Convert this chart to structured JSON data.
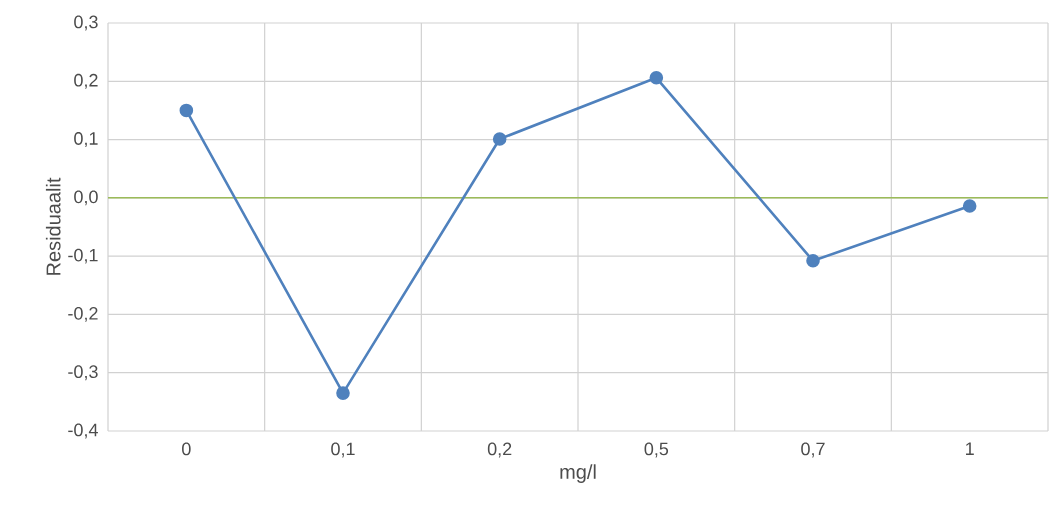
{
  "chart_data": {
    "type": "line",
    "xlabel": "mg/l",
    "ylabel": "Residuaalit",
    "categories": [
      "0",
      "0,1",
      "0,2",
      "0,5",
      "0,7",
      "1"
    ],
    "values": [
      0.15,
      -0.335,
      0.101,
      0.206,
      -0.108,
      -0.014
    ],
    "color": "#4f81bd",
    "marker": "circle",
    "line_style": "solid",
    "grid": true,
    "ylim": [
      -0.4,
      0.3
    ],
    "yticks": [
      {
        "value": -0.4,
        "label": "-0,4"
      },
      {
        "value": -0.3,
        "label": "-0,3"
      },
      {
        "value": -0.2,
        "label": "-0,2"
      },
      {
        "value": -0.1,
        "label": "-0,1"
      },
      {
        "value": 0,
        "label": "0,0"
      },
      {
        "value": 0.1,
        "label": "0,1"
      },
      {
        "value": 0.2,
        "label": "0,2"
      },
      {
        "value": 0.3,
        "label": "0,3"
      }
    ],
    "ref_lines": [
      {
        "axis": "y",
        "value": 0,
        "color": "#9bbb59"
      }
    ]
  }
}
